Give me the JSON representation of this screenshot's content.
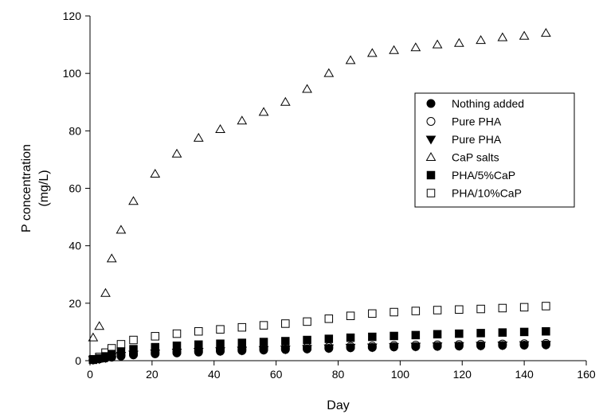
{
  "chart_data": {
    "type": "scatter",
    "title": "",
    "xlabel": "Day",
    "ylabel_lines": [
      "P concentration",
      "(mg/L)"
    ],
    "xlim": [
      0,
      160
    ],
    "ylim": [
      0,
      120
    ],
    "xticks": [
      0,
      20,
      40,
      60,
      80,
      100,
      120,
      140,
      160
    ],
    "yticks": [
      0,
      20,
      40,
      60,
      80,
      100,
      120
    ],
    "grid": false,
    "legend_position": "right, upper-middle",
    "colors": {
      "marker": "#000000",
      "background": "#ffffff"
    },
    "series": [
      {
        "name": "Nothing added",
        "marker": "filled-circle",
        "x": [
          1,
          3,
          5,
          7,
          10,
          14,
          21,
          28,
          35,
          42,
          49,
          56,
          63,
          70,
          77,
          84,
          91,
          98,
          105,
          112,
          119,
          126,
          133,
          140,
          147
        ],
        "y": [
          0.3,
          0.6,
          0.9,
          1.2,
          1.6,
          2.0,
          2.4,
          2.7,
          3.0,
          3.3,
          3.5,
          3.7,
          3.9,
          4.1,
          4.3,
          4.5,
          4.6,
          4.8,
          4.9,
          5.0,
          5.1,
          5.2,
          5.3,
          5.4,
          5.5
        ]
      },
      {
        "name": "Pure PHA",
        "marker": "open-circle",
        "x": [
          1,
          3,
          5,
          7,
          10,
          14,
          21,
          28,
          35,
          42,
          49,
          56,
          63,
          70,
          77,
          84,
          91,
          98,
          105,
          112,
          119,
          126,
          133,
          140,
          147
        ],
        "y": [
          0.4,
          0.7,
          1.1,
          1.5,
          2.0,
          2.4,
          2.9,
          3.2,
          3.5,
          3.8,
          4.0,
          4.2,
          4.4,
          4.6,
          4.8,
          5.0,
          5.1,
          5.3,
          5.4,
          5.5,
          5.6,
          5.7,
          5.8,
          5.9,
          6.0
        ]
      },
      {
        "name": "Pure PHA",
        "marker": "filled-triangle-down",
        "x": [
          1,
          3,
          5,
          7,
          10,
          14,
          21,
          28,
          35,
          42,
          49,
          56,
          63,
          70,
          77,
          84,
          91,
          98,
          105,
          112,
          119,
          126,
          133,
          140,
          147
        ],
        "y": [
          0.3,
          0.6,
          1.0,
          1.4,
          1.8,
          2.2,
          2.6,
          2.9,
          3.2,
          3.4,
          3.6,
          3.8,
          4.0,
          4.2,
          4.4,
          4.6,
          4.7,
          4.9,
          5.0,
          5.1,
          5.2,
          5.3,
          5.4,
          5.5,
          5.6
        ]
      },
      {
        "name": "CaP salts",
        "marker": "open-triangle-up",
        "x": [
          1,
          3,
          5,
          7,
          10,
          14,
          21,
          28,
          35,
          42,
          49,
          56,
          63,
          70,
          77,
          84,
          91,
          98,
          105,
          112,
          119,
          126,
          133,
          140,
          147
        ],
        "y": [
          8,
          12,
          23.5,
          35.5,
          45.5,
          55.5,
          65,
          72,
          77.5,
          80.5,
          83.5,
          86.5,
          90,
          94.5,
          100,
          104.5,
          107,
          108,
          109,
          110,
          110.5,
          111.5,
          112.5,
          113,
          114
        ]
      },
      {
        "name": "PHA/5%CaP",
        "marker": "filled-square",
        "x": [
          1,
          3,
          5,
          7,
          10,
          14,
          21,
          28,
          35,
          42,
          49,
          56,
          63,
          70,
          77,
          84,
          91,
          98,
          105,
          112,
          119,
          126,
          133,
          140,
          147
        ],
        "y": [
          0.3,
          0.8,
          1.5,
          2.3,
          3.2,
          4.0,
          4.7,
          5.2,
          5.6,
          5.9,
          6.2,
          6.5,
          6.8,
          7.2,
          7.6,
          8.0,
          8.3,
          8.6,
          8.9,
          9.2,
          9.4,
          9.6,
          9.8,
          10.0,
          10.2
        ]
      },
      {
        "name": "PHA/10%CaP",
        "marker": "open-square",
        "x": [
          1,
          3,
          5,
          7,
          10,
          14,
          21,
          28,
          35,
          42,
          49,
          56,
          63,
          70,
          77,
          84,
          91,
          98,
          105,
          112,
          119,
          126,
          133,
          140,
          147
        ],
        "y": [
          0.5,
          1.3,
          2.8,
          4.3,
          5.7,
          7.2,
          8.5,
          9.4,
          10.2,
          10.9,
          11.6,
          12.3,
          12.9,
          13.6,
          14.6,
          15.6,
          16.4,
          16.9,
          17.3,
          17.6,
          17.8,
          18.0,
          18.3,
          18.6,
          19.0
        ]
      }
    ]
  }
}
